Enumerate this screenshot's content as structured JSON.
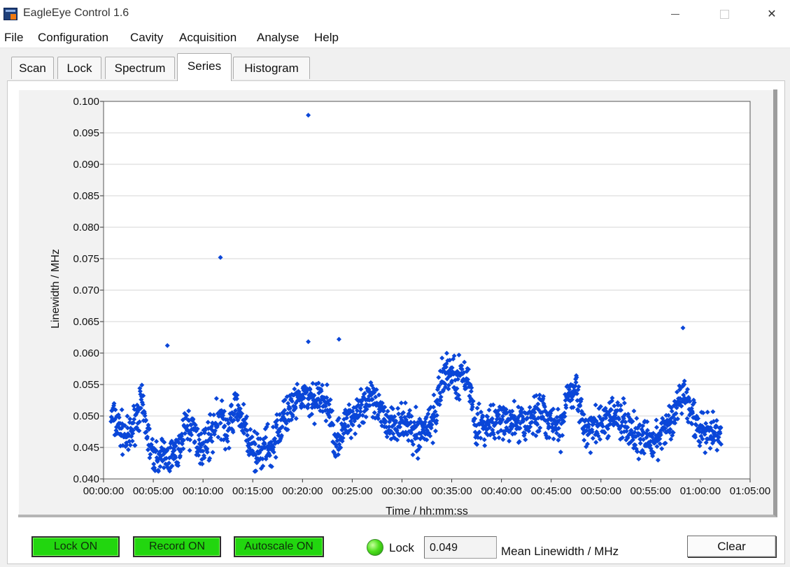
{
  "window": {
    "title": "EagleEye Control 1.6",
    "icon": "app-icon"
  },
  "menu": [
    "File",
    "Configuration",
    "Cavity",
    "Acquisition",
    "Analyse",
    "Help"
  ],
  "tabs": [
    {
      "label": "Scan",
      "active": false
    },
    {
      "label": "Lock",
      "active": false
    },
    {
      "label": "Spectrum",
      "active": false
    },
    {
      "label": "Series",
      "active": true
    },
    {
      "label": "Histogram",
      "active": false
    }
  ],
  "chart_data": {
    "type": "scatter",
    "xlabel": "Time  / hh:mm:ss",
    "ylabel": "Linewidth / MHz",
    "xlim_seconds": [
      0,
      3900
    ],
    "ylim": [
      0.04,
      0.1
    ],
    "x_ticks": [
      "00:00:00",
      "00:05:00",
      "00:10:00",
      "00:15:00",
      "00:20:00",
      "00:25:00",
      "00:30:00",
      "00:35:00",
      "00:40:00",
      "00:45:00",
      "00:50:00",
      "00:55:00",
      "01:00:00",
      "01:05:00"
    ],
    "y_ticks": [
      "0.040",
      "0.045",
      "0.050",
      "0.055",
      "0.060",
      "0.065",
      "0.070",
      "0.075",
      "0.080",
      "0.085",
      "0.090",
      "0.095",
      "0.100"
    ],
    "grid": true,
    "marker_color": "#0a46d8",
    "outliers": [
      {
        "t": "00:06:25",
        "y": 0.0612
      },
      {
        "t": "00:11:45",
        "y": 0.0752
      },
      {
        "t": "00:20:35",
        "y": 0.0978
      },
      {
        "t": "00:20:35",
        "y": 0.0618
      },
      {
        "t": "00:23:40",
        "y": 0.0622
      },
      {
        "t": "00:58:15",
        "y": 0.064
      }
    ],
    "trend": [
      {
        "t": "00:00:45",
        "y": 0.05
      },
      {
        "t": "00:02:30",
        "y": 0.046
      },
      {
        "t": "00:03:45",
        "y": 0.052
      },
      {
        "t": "00:05:00",
        "y": 0.043
      },
      {
        "t": "00:07:30",
        "y": 0.044
      },
      {
        "t": "00:08:20",
        "y": 0.049
      },
      {
        "t": "00:10:00",
        "y": 0.045
      },
      {
        "t": "00:11:40",
        "y": 0.05
      },
      {
        "t": "00:12:30",
        "y": 0.047
      },
      {
        "t": "00:13:20",
        "y": 0.052
      },
      {
        "t": "00:15:00",
        "y": 0.044
      },
      {
        "t": "00:16:40",
        "y": 0.045
      },
      {
        "t": "00:18:20",
        "y": 0.05
      },
      {
        "t": "00:20:00",
        "y": 0.053
      },
      {
        "t": "00:22:30",
        "y": 0.052
      },
      {
        "t": "00:23:20",
        "y": 0.046
      },
      {
        "t": "00:25:00",
        "y": 0.05
      },
      {
        "t": "00:26:40",
        "y": 0.053
      },
      {
        "t": "00:28:20",
        "y": 0.049
      },
      {
        "t": "00:30:00",
        "y": 0.049
      },
      {
        "t": "00:31:40",
        "y": 0.047
      },
      {
        "t": "00:33:20",
        "y": 0.05
      },
      {
        "t": "00:34:10",
        "y": 0.057
      },
      {
        "t": "00:36:40",
        "y": 0.056
      },
      {
        "t": "00:37:30",
        "y": 0.048
      },
      {
        "t": "00:40:00",
        "y": 0.049
      },
      {
        "t": "00:42:30",
        "y": 0.049
      },
      {
        "t": "00:44:10",
        "y": 0.051
      },
      {
        "t": "00:45:50",
        "y": 0.047
      },
      {
        "t": "00:46:40",
        "y": 0.054
      },
      {
        "t": "00:47:30",
        "y": 0.055
      },
      {
        "t": "00:48:20",
        "y": 0.047
      },
      {
        "t": "00:50:00",
        "y": 0.049
      },
      {
        "t": "00:51:40",
        "y": 0.05
      },
      {
        "t": "00:53:20",
        "y": 0.047
      },
      {
        "t": "00:55:00",
        "y": 0.046
      },
      {
        "t": "00:56:40",
        "y": 0.048
      },
      {
        "t": "00:58:20",
        "y": 0.054
      },
      {
        "t": "00:59:10",
        "y": 0.05
      },
      {
        "t": "01:00:00",
        "y": 0.047
      },
      {
        "t": "01:02:05",
        "y": 0.047
      }
    ],
    "spread": 0.0045,
    "point_count": 1800
  },
  "controls": {
    "lock_on": "Lock ON",
    "record_on": "Record ON",
    "autoscale_on": "Autoscale ON",
    "led_label": "Lock",
    "led_color": "#3ad81a",
    "mean_value": "0.049",
    "mean_label": "Mean Linewidth / MHz",
    "clear": "Clear"
  }
}
